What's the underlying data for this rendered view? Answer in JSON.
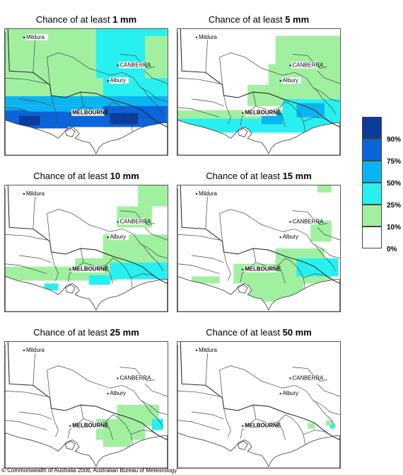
{
  "panels": [
    {
      "title_prefix": "Chance of at least ",
      "threshold": "1 mm"
    },
    {
      "title_prefix": "Chance of at least ",
      "threshold": "5 mm"
    },
    {
      "title_prefix": "Chance of at least ",
      "threshold": "10 mm"
    },
    {
      "title_prefix": "Chance of at least ",
      "threshold": "15 mm"
    },
    {
      "title_prefix": "Chance of at least ",
      "threshold": "25 mm"
    },
    {
      "title_prefix": "Chance of at least ",
      "threshold": "50 mm"
    }
  ],
  "places": {
    "mildura": "Mildura",
    "canberra": "CANBERRA",
    "albury": "Albury",
    "melbourne": "MELBOURNE"
  },
  "legend": {
    "labels": [
      "90%",
      "75%",
      "50%",
      "25%",
      "10%",
      "0%"
    ],
    "colors": [
      "#0a3c9c",
      "#0a64dc",
      "#0ab4f0",
      "#28f0f0",
      "#a0f0a0",
      "#ffffff"
    ]
  },
  "colors": {
    "c10": "#a0f0a0",
    "c25": "#28f0f0",
    "c50": "#0ab4f0",
    "c75": "#0a64dc",
    "c90": "#0a3c9c"
  },
  "copyright": "© Commonwealth of Australia 2006, Australian Bureau of Meteorology"
}
